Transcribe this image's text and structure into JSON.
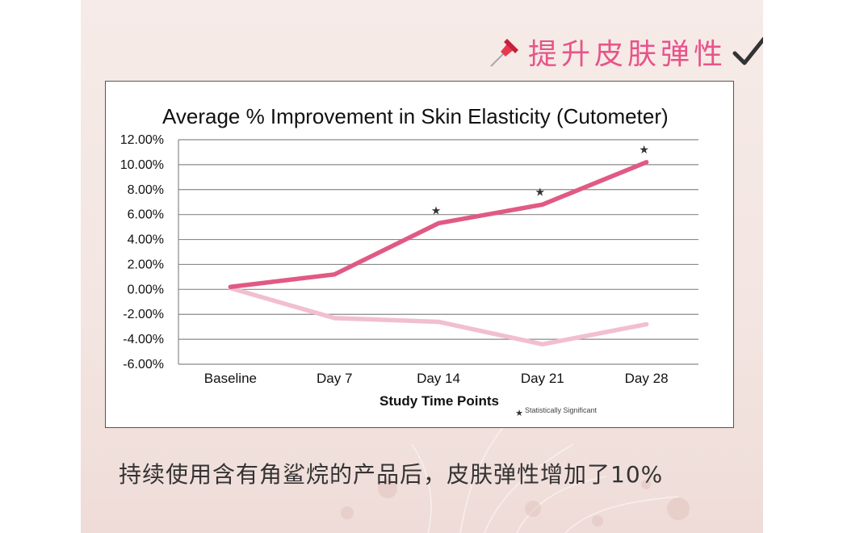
{
  "headline": {
    "text": "提升皮肤弹性",
    "pin_icon": "pushpin-icon",
    "check_icon": "checkmark-icon",
    "accent_color": "#e7548a"
  },
  "chart_data": {
    "type": "line",
    "title": "Average % Improvement in Skin Elasticity (Cutometer)",
    "xlabel": "Study Time Points",
    "ylabel": "",
    "categories": [
      "Baseline",
      "Day 7",
      "Day 14",
      "Day 21",
      "Day 28"
    ],
    "yticks": [
      "12.00%",
      "10.00%",
      "8.00%",
      "6.00%",
      "4.00%",
      "2.00%",
      "0.00%",
      "-2.00%",
      "-4.00%",
      "-6.00%"
    ],
    "ylim": [
      -6,
      12
    ],
    "grid": true,
    "series": [
      {
        "color": "#e05a84",
        "values": [
          0.2,
          1.2,
          5.3,
          6.8,
          10.2
        ],
        "significant": [
          false,
          false,
          true,
          true,
          true
        ]
      },
      {
        "color": "#f2bfcf",
        "values": [
          0.1,
          -2.3,
          -2.6,
          -4.4,
          -2.8
        ],
        "significant": [
          false,
          false,
          false,
          false,
          false
        ]
      }
    ],
    "significance_marker": "★",
    "significance_note": "Statistically Significant"
  },
  "caption": "持续使用含有角鲨烷的产品后，皮肤弹性增加了10%"
}
